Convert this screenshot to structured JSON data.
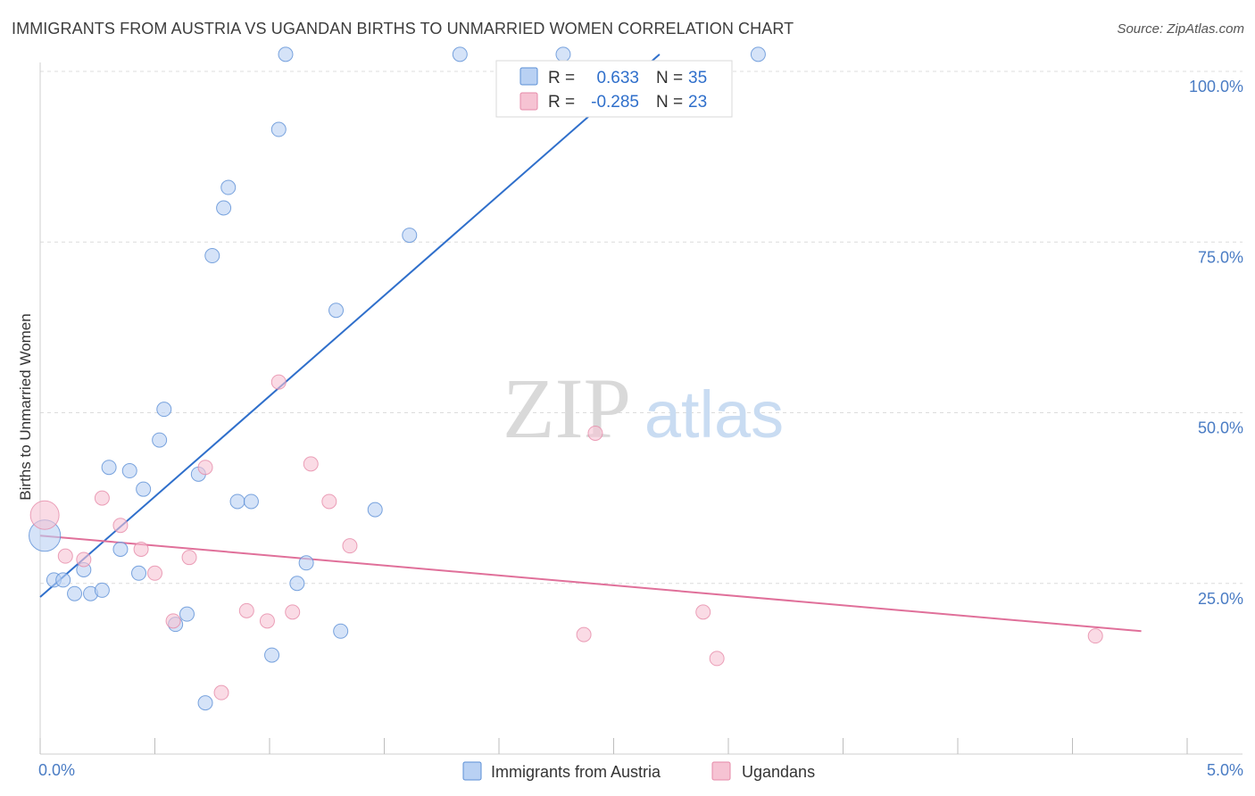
{
  "header": {
    "title": "IMMIGRANTS FROM AUSTRIA VS UGANDAN BIRTHS TO UNMARRIED WOMEN CORRELATION CHART",
    "source": "Source: ZipAtlas.com"
  },
  "watermark": {
    "zip": "ZIP",
    "atlas": "atlas"
  },
  "colors": {
    "blue": "#5b8fd6",
    "blue_fill": "#b9d1f3",
    "blue_line": "#2f6fcb",
    "pink": "#e68aa8",
    "pink_fill": "#f6c3d3",
    "pink_line": "#e0709a",
    "axis_text": "#4a7cc4"
  },
  "legend_box": {
    "rows": [
      {
        "r_label": "R =",
        "r_value": "0.633",
        "n_label": "N =",
        "n_value": "35"
      },
      {
        "r_label": "R =",
        "r_value": "-0.285",
        "n_label": "N =",
        "n_value": "23"
      }
    ]
  },
  "chart_data": {
    "type": "scatter",
    "xlabel": "",
    "ylabel": "Births to Unmarried Women",
    "xlim": [
      0,
      5
    ],
    "ylim": [
      0,
      100
    ],
    "x_tick_labels": [
      "0.0%",
      "5.0%"
    ],
    "y_ticks": [
      25,
      50,
      75,
      100
    ],
    "y_tick_labels": [
      "25.0%",
      "50.0%",
      "75.0%",
      "100.0%"
    ],
    "grid": true,
    "legend_position": "bottom-center",
    "series": [
      {
        "name": "Immigrants from Austria",
        "color": "#5b8fd6",
        "points": [
          [
            0.02,
            32.0,
            2.2
          ],
          [
            0.06,
            25.5,
            1
          ],
          [
            0.1,
            25.5,
            1
          ],
          [
            0.15,
            23.5,
            1
          ],
          [
            0.19,
            27.0,
            1
          ],
          [
            0.22,
            23.5,
            1
          ],
          [
            0.27,
            24.0,
            1
          ],
          [
            0.3,
            42.0,
            1
          ],
          [
            0.35,
            30.0,
            1
          ],
          [
            0.39,
            41.5,
            1
          ],
          [
            0.43,
            26.5,
            1
          ],
          [
            0.45,
            38.8,
            1
          ],
          [
            0.52,
            46.0,
            1
          ],
          [
            0.54,
            50.5,
            1
          ],
          [
            0.59,
            19.0,
            1
          ],
          [
            0.64,
            20.5,
            1
          ],
          [
            0.69,
            41.0,
            1
          ],
          [
            0.72,
            7.5,
            1
          ],
          [
            0.75,
            73.0,
            1
          ],
          [
            0.8,
            80.0,
            1
          ],
          [
            0.82,
            83.0,
            1
          ],
          [
            0.86,
            37.0,
            1
          ],
          [
            0.92,
            37.0,
            1
          ],
          [
            1.01,
            14.5,
            1
          ],
          [
            1.04,
            91.5,
            1
          ],
          [
            1.07,
            102.5,
            1
          ],
          [
            1.12,
            25.0,
            1
          ],
          [
            1.16,
            28.0,
            1
          ],
          [
            1.29,
            65.0,
            1
          ],
          [
            1.31,
            18.0,
            1
          ],
          [
            1.46,
            35.8,
            1
          ],
          [
            1.61,
            76.0,
            1
          ],
          [
            1.83,
            102.5,
            1
          ],
          [
            2.28,
            102.5,
            1
          ],
          [
            3.13,
            102.5,
            1
          ]
        ],
        "trend": {
          "x": [
            0.0,
            2.7
          ],
          "y": [
            23.0,
            102.5
          ]
        }
      },
      {
        "name": "Ugandans",
        "color": "#e68aa8",
        "points": [
          [
            0.02,
            35.0,
            2.0
          ],
          [
            0.11,
            29.0,
            1
          ],
          [
            0.19,
            28.5,
            1
          ],
          [
            0.27,
            37.5,
            1
          ],
          [
            0.35,
            33.5,
            1
          ],
          [
            0.44,
            30.0,
            1
          ],
          [
            0.5,
            26.5,
            1
          ],
          [
            0.58,
            19.5,
            1
          ],
          [
            0.65,
            28.8,
            1
          ],
          [
            0.72,
            42.0,
            1
          ],
          [
            0.79,
            9.0,
            1
          ],
          [
            0.9,
            21.0,
            1
          ],
          [
            0.99,
            19.5,
            1
          ],
          [
            1.04,
            54.5,
            1
          ],
          [
            1.1,
            20.8,
            1
          ],
          [
            1.18,
            42.5,
            1
          ],
          [
            1.26,
            37.0,
            1
          ],
          [
            1.35,
            30.5,
            1
          ],
          [
            2.37,
            17.5,
            1
          ],
          [
            2.42,
            47.0,
            1
          ],
          [
            2.89,
            20.8,
            1
          ],
          [
            2.95,
            14.0,
            1
          ],
          [
            4.6,
            17.3,
            1
          ]
        ],
        "trend": {
          "x": [
            0.0,
            4.8
          ],
          "y": [
            32.0,
            18.0
          ]
        }
      }
    ]
  }
}
